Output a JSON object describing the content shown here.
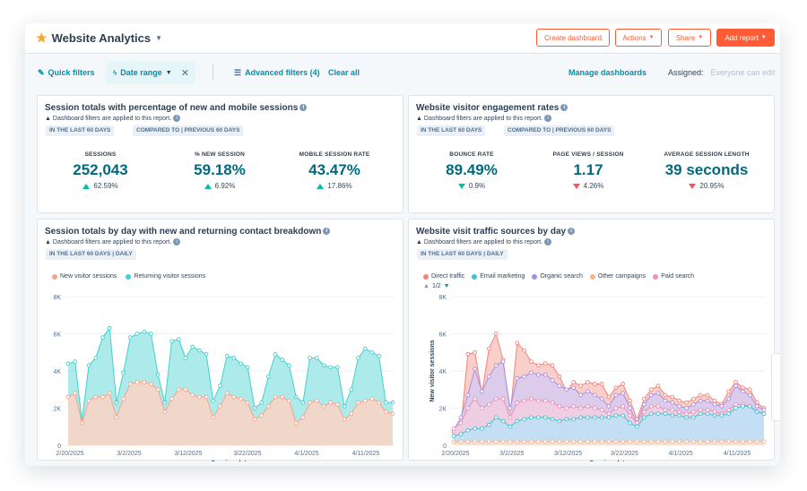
{
  "header": {
    "title": "Website Analytics",
    "star_icon": "star-icon",
    "buttons": {
      "create_dashboard": "Create dashboard",
      "actions": "Actions",
      "share": "Share",
      "add_report": "Add report"
    }
  },
  "filters": {
    "quick_filters": "Quick filters",
    "date_range": "Date range",
    "advanced_filters": "Advanced filters (4)",
    "clear_all": "Clear all",
    "manage_dashboards": "Manage dashboards",
    "assigned_label": "Assigned:",
    "assigned_value": "Everyone can edit"
  },
  "colors": {
    "accent_teal": "#0091ae",
    "brand_orange": "#ff5c35",
    "new_visitor": "#f8a38c",
    "returning_visitor": "#3fd1cf",
    "direct_traffic": "#f2847a",
    "email_marketing": "#3fc3cf",
    "organic_search": "#a98ee0",
    "other_campaigns": "#f8b58a",
    "paid_search": "#ea90b8",
    "up": "#00bda5",
    "down": "#f2545b"
  },
  "card1": {
    "title": "Session totals with percentage of new and mobile sessions",
    "note": "Dashboard filters are applied to this report.",
    "tag1": "IN THE LAST 60 DAYS",
    "tag2": "COMPARED TO | PREVIOUS 60 DAYS",
    "kpis": [
      {
        "label": "SESSIONS",
        "value": "252,043",
        "change": "62.59%",
        "direction": "up"
      },
      {
        "label": "% NEW SESSION",
        "value": "59.18%",
        "change": "6.92%",
        "direction": "up"
      },
      {
        "label": "MOBILE SESSION RATE",
        "value": "43.47%",
        "change": "17.86%",
        "direction": "up"
      }
    ]
  },
  "card2": {
    "title": "Website visitor engagement rates",
    "note": "Dashboard filters are applied to this report.",
    "tag1": "IN THE LAST 60 DAYS",
    "tag2": "COMPARED TO | PREVIOUS 60 DAYS",
    "kpis": [
      {
        "label": "BOUNCE RATE",
        "value": "89.49%",
        "change": "0.9%",
        "direction": "down-good"
      },
      {
        "label": "PAGE VIEWS / SESSION",
        "value": "1.17",
        "change": "4.26%",
        "direction": "down"
      },
      {
        "label": "AVERAGE SESSION LENGTH",
        "value": "39 seconds",
        "change": "20.95%",
        "direction": "down"
      }
    ]
  },
  "card3": {
    "title": "Session totals by day with new and returning contact breakdown",
    "note": "Dashboard filters are applied to this report.",
    "tag1": "IN THE LAST 60 DAYS | DAILY",
    "legend": [
      "New visitor sessions",
      "Returning visitor sessions"
    ]
  },
  "card4": {
    "title": "Website visit traffic sources by day",
    "note": "Dashboard filters are applied to this report.",
    "tag1": "IN THE LAST 60 DAYS | DAILY",
    "legend": [
      "Direct traffic",
      "Email marketing",
      "Organic search",
      "Other campaigns",
      "Paid search"
    ],
    "pager": "1/2"
  },
  "chart_data": [
    {
      "type": "area",
      "title": "Session totals by day with new and returning contact breakdown",
      "xlabel": "Session date",
      "ylabel": "",
      "ylim": [
        0,
        8000
      ],
      "yticks": [
        "0",
        "2K",
        "4K",
        "6K",
        "8K"
      ],
      "xticks": [
        "2/20/2025",
        "3/2/2025",
        "3/12/2025",
        "3/22/2025",
        "4/1/2025",
        "4/11/2025"
      ],
      "series": [
        {
          "name": "New visitor sessions",
          "values": [
            2600,
            2800,
            1200,
            2400,
            2600,
            2600,
            2800,
            1500,
            2500,
            3300,
            3400,
            3400,
            3300,
            3000,
            1800,
            2500,
            3000,
            3000,
            2700,
            2600,
            2600,
            1500,
            2100,
            2800,
            2600,
            2500,
            2300,
            1400,
            1600,
            2100,
            2600,
            2600,
            2400,
            1200,
            1500,
            2300,
            2400,
            2100,
            2300,
            2200,
            1400,
            1700,
            2300,
            2400,
            2500,
            2300,
            1800,
            1700
          ]
        },
        {
          "name": "Returning visitor sessions",
          "values": [
            4400,
            4500,
            1300,
            4300,
            4700,
            5800,
            6300,
            2300,
            3900,
            5800,
            6000,
            6100,
            6000,
            3800,
            2300,
            5600,
            5700,
            4700,
            5300,
            5100,
            4900,
            2400,
            3200,
            4800,
            4700,
            4400,
            4200,
            2000,
            2300,
            3700,
            4900,
            4600,
            4300,
            2600,
            2300,
            4700,
            4700,
            4300,
            4200,
            4200,
            2100,
            3000,
            4700,
            5200,
            5000,
            4800,
            2300,
            2300
          ]
        }
      ]
    },
    {
      "type": "area",
      "title": "Website visit traffic sources by day",
      "xlabel": "Session date",
      "ylabel": "New visitor sessions",
      "ylim": [
        0,
        8000
      ],
      "yticks": [
        "0",
        "2K",
        "4K",
        "6K",
        "8K"
      ],
      "xticks": [
        "2/20/2025",
        "3/2/2025",
        "3/12/2025",
        "3/22/2025",
        "4/1/2025",
        "4/11/2025"
      ],
      "series": [
        {
          "name": "Direct traffic",
          "values": [
            700,
            900,
            4900,
            5000,
            2800,
            5200,
            6000,
            4600,
            1600,
            5500,
            5100,
            4500,
            4300,
            4400,
            4300,
            3700,
            2900,
            3400,
            3200,
            3400,
            3300,
            3300,
            2600,
            3100,
            3300,
            2400,
            1400,
            2500,
            3000,
            3200,
            2700,
            2600,
            2400,
            2300,
            2500,
            2700,
            2700,
            2400,
            2200,
            2900,
            3400,
            3100,
            3000,
            2300,
            2000
          ]
        },
        {
          "name": "Email marketing",
          "values": [
            500,
            600,
            800,
            900,
            900,
            1100,
            1500,
            1300,
            1000,
            1300,
            1400,
            1500,
            1500,
            1500,
            1400,
            1300,
            1400,
            1400,
            1500,
            1500,
            1500,
            1500,
            1500,
            1600,
            1600,
            1200,
            1000,
            1500,
            1700,
            1700,
            1700,
            1600,
            1600,
            1500,
            1500,
            1700,
            1700,
            1600,
            1600,
            1700,
            2000,
            2100,
            2100,
            1800,
            1700
          ]
        },
        {
          "name": "Organic search",
          "values": [
            800,
            1500,
            2700,
            4100,
            2900,
            3700,
            4300,
            4500,
            2000,
            3600,
            3700,
            3900,
            3800,
            3800,
            3500,
            3200,
            3000,
            3100,
            2700,
            2900,
            2700,
            2500,
            2100,
            2700,
            2800,
            2000,
            1200,
            2200,
            2700,
            2800,
            2400,
            2300,
            2100,
            2000,
            2200,
            2400,
            2400,
            2200,
            2100,
            2500,
            3200,
            2900,
            2700,
            2100,
            1900
          ]
        },
        {
          "name": "Other campaigns",
          "values": [
            200,
            200,
            200,
            200,
            200,
            200,
            200,
            200,
            200,
            200,
            200,
            200,
            200,
            200,
            200,
            200,
            200,
            200,
            200,
            200,
            200,
            200,
            200,
            200,
            200,
            200,
            200,
            200,
            200,
            200,
            200,
            200,
            200,
            200,
            200,
            200,
            200,
            200,
            200,
            200,
            200,
            200,
            200,
            200,
            200
          ]
        },
        {
          "name": "Paid search",
          "values": [
            900,
            1200,
            2000,
            2500,
            2000,
            2200,
            2500,
            2500,
            1500,
            2300,
            2400,
            2500,
            2400,
            2400,
            2300,
            2100,
            2000,
            2100,
            2000,
            2100,
            2000,
            1900,
            1700,
            2000,
            2100,
            1600,
            1200,
            1800,
            2100,
            2100,
            1900,
            1900,
            1800,
            1700,
            1800,
            1900,
            1900,
            1800,
            1700,
            1900,
            2200,
            2200,
            2100,
            1800,
            1700
          ]
        }
      ]
    }
  ]
}
